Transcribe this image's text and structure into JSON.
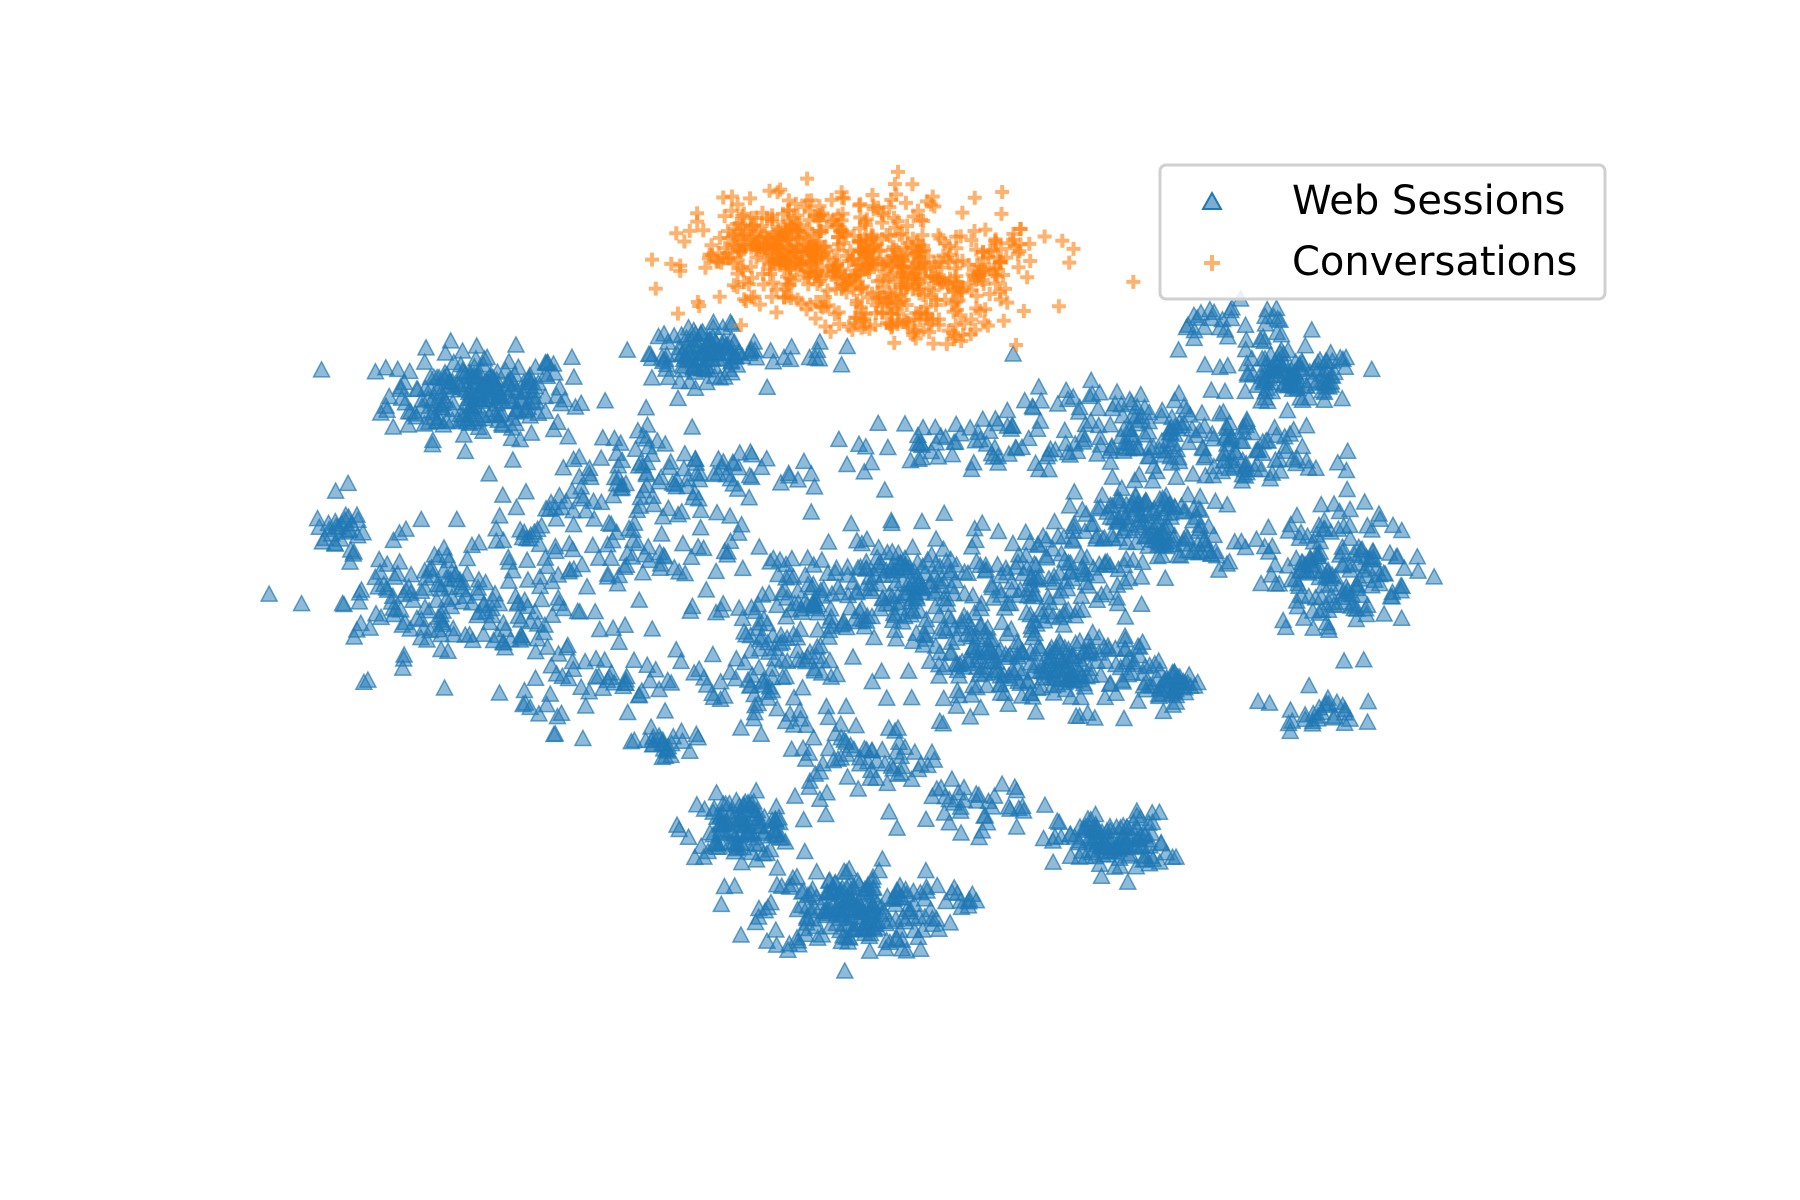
{
  "chart_data": {
    "type": "scatter",
    "title": "",
    "xlabel": "",
    "ylabel": "",
    "axes_visible": false,
    "grid": false,
    "legend_position": "top-right",
    "xlim": [
      -60,
      60
    ],
    "ylim": [
      -50,
      50
    ],
    "series": [
      {
        "name": "Web Sessions",
        "marker": "triangle",
        "color": "#1f77b4",
        "clusters": [
          {
            "cx": -38,
            "cy": 24,
            "sx": 4.0,
            "sy": 2.6,
            "n": 240
          },
          {
            "cx": -18,
            "cy": 29,
            "sx": 2.4,
            "sy": 1.6,
            "n": 120
          },
          {
            "cx": 34,
            "cy": 26,
            "sx": 2.8,
            "sy": 1.6,
            "n": 110
          },
          {
            "cx": -15,
            "cy": -28,
            "sx": 2.4,
            "sy": 1.8,
            "n": 120
          },
          {
            "cx": -5,
            "cy": -38,
            "sx": 4.0,
            "sy": 2.6,
            "n": 220
          },
          {
            "cx": 18,
            "cy": -30,
            "sx": 2.4,
            "sy": 1.8,
            "n": 120
          },
          {
            "cx": -50,
            "cy": 8,
            "sx": 1.2,
            "sy": 0.9,
            "n": 25
          },
          {
            "cx": -22,
            "cy": -18,
            "sx": 1.2,
            "sy": 0.9,
            "n": 25
          },
          {
            "cx": 23,
            "cy": -11,
            "sx": 1.4,
            "sy": 1.0,
            "n": 40
          },
          {
            "cx": 7,
            "cy": -8,
            "sx": 3.2,
            "sy": 2.6,
            "n": 120
          },
          {
            "cx": 15,
            "cy": -9,
            "sx": 3.5,
            "sy": 2.4,
            "n": 130
          },
          {
            "cx": 0,
            "cy": 1,
            "sx": 3.5,
            "sy": 3.0,
            "n": 140
          },
          {
            "cx": -10,
            "cy": -2,
            "sx": 4.0,
            "sy": 4.0,
            "n": 120
          },
          {
            "cx": -30,
            "cy": 6,
            "sx": 8.0,
            "sy": 4.0,
            "n": 140
          },
          {
            "cx": -38,
            "cy": -3,
            "sx": 6.0,
            "sy": 3.5,
            "n": 110
          },
          {
            "cx": -20,
            "cy": 15,
            "sx": 6.5,
            "sy": 3.0,
            "n": 100
          },
          {
            "cx": 12,
            "cy": 2,
            "sx": 4.0,
            "sy": 3.0,
            "n": 120
          },
          {
            "cx": 6,
            "cy": 18,
            "sx": 5.0,
            "sy": 2.0,
            "n": 60
          },
          {
            "cx": 19,
            "cy": 20,
            "sx": 5.0,
            "sy": 2.5,
            "n": 110
          },
          {
            "cx": 20,
            "cy": 9,
            "sx": 3.2,
            "sy": 2.4,
            "n": 130
          },
          {
            "cx": 29,
            "cy": 17,
            "sx": 4.0,
            "sy": 2.6,
            "n": 90
          },
          {
            "cx": 38,
            "cy": 3,
            "sx": 3.2,
            "sy": 3.6,
            "n": 160
          },
          {
            "cx": 36,
            "cy": -14,
            "sx": 1.8,
            "sy": 1.2,
            "n": 30
          },
          {
            "cx": 28,
            "cy": 32,
            "sx": 3.0,
            "sy": 2.4,
            "n": 40
          },
          {
            "cx": 26,
            "cy": 6,
            "sx": 2.2,
            "sy": 1.6,
            "n": 30
          },
          {
            "cx": -4,
            "cy": -20,
            "sx": 3.5,
            "sy": 2.0,
            "n": 60
          },
          {
            "cx": 6,
            "cy": -26,
            "sx": 2.5,
            "sy": 2.5,
            "n": 40
          },
          {
            "cx": 5,
            "cy": -37,
            "sx": 0.8,
            "sy": 0.5,
            "n": 6
          },
          {
            "cx": -9,
            "cy": 29,
            "sx": 2.0,
            "sy": 1.0,
            "n": 12
          },
          {
            "cx": -26,
            "cy": -11,
            "sx": 4.0,
            "sy": 2.5,
            "n": 50
          },
          {
            "cx": -12,
            "cy": -12,
            "sx": 4.0,
            "sy": 3.0,
            "n": 60
          },
          {
            "cx": -44,
            "cy": 0,
            "sx": 4.0,
            "sy": 2.5,
            "n": 40
          }
        ]
      },
      {
        "name": "Conversations",
        "marker": "plus",
        "color": "#ff7f0e",
        "clusters": [
          {
            "cx": -6,
            "cy": 41,
            "sx": 6.0,
            "sy": 3.6,
            "n": 380
          },
          {
            "cx": -12,
            "cy": 42,
            "sx": 3.0,
            "sy": 2.5,
            "n": 150
          },
          {
            "cx": 2,
            "cy": 37,
            "sx": 3.5,
            "sy": 2.4,
            "n": 110
          },
          {
            "cx": 8,
            "cy": 41,
            "sx": 2.5,
            "sy": 1.4,
            "n": 35
          },
          {
            "cx": 0,
            "cy": 33,
            "sx": 4.0,
            "sy": 1.2,
            "n": 60
          }
        ]
      }
    ]
  },
  "legend": {
    "entries": [
      {
        "label": "Web Sessions",
        "color": "#1f77b4",
        "marker": "triangle"
      },
      {
        "label": "Conversations",
        "color": "#ff7f0e",
        "marker": "plus"
      }
    ]
  }
}
